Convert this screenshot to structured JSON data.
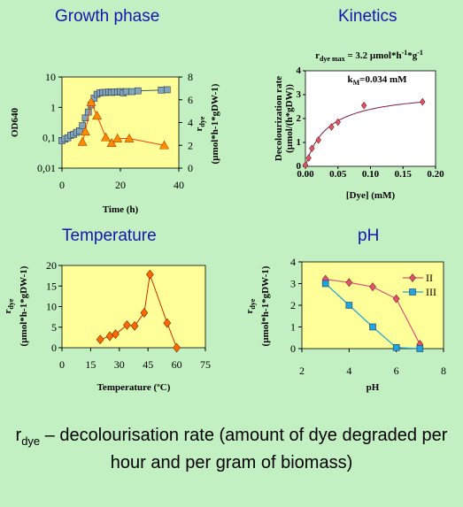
{
  "chart_data": [
    {
      "id": "growth",
      "type": "line",
      "title": "Growth phase",
      "xlabel": "Time (h)",
      "ylabel_left": "OD640",
      "ylabel_right_main": "r",
      "ylabel_right_sub": "dye",
      "ylabel_right_unit": "(µmol*h-1*gDW-1)",
      "xlim": [
        0,
        40
      ],
      "xticks": [
        "0",
        "20",
        "40"
      ],
      "ylim_left": [
        0.01,
        10
      ],
      "yscale_left": "log",
      "yticks_left": [
        "0,01",
        "0,1",
        "1",
        "10"
      ],
      "ylim_right": [
        0,
        8
      ],
      "yticks_right": [
        "0",
        "2",
        "4",
        "6",
        "8"
      ],
      "series": [
        {
          "axis": "left",
          "marker": "square",
          "color": "#7fa7b8",
          "x": [
            0,
            1,
            2,
            3,
            4,
            5,
            6,
            7,
            8,
            9,
            10,
            11,
            12,
            13,
            14,
            15,
            16,
            17,
            18,
            19,
            20,
            21,
            22,
            24,
            26,
            34,
            36
          ],
          "y": [
            0.08,
            0.09,
            0.1,
            0.12,
            0.13,
            0.15,
            0.17,
            0.25,
            0.45,
            0.7,
            1.2,
            2.0,
            2.7,
            3.0,
            3.1,
            3.1,
            3.2,
            3.1,
            3.2,
            3.2,
            3.3,
            3.0,
            3.3,
            3.3,
            3.5,
            3.7,
            3.8
          ]
        },
        {
          "axis": "right",
          "marker": "triangle",
          "color": "#ff8c00",
          "x": [
            7,
            8,
            10,
            12,
            15,
            17,
            19,
            23,
            35
          ],
          "y": [
            2.3,
            3.2,
            5.8,
            4.6,
            2.7,
            2.2,
            2.6,
            2.6,
            2.0
          ]
        }
      ]
    },
    {
      "id": "kinetics",
      "type": "scatter",
      "title": "Kinetics",
      "annotation_line1_prefix": "r",
      "annotation_line1_sub": "dye max",
      "annotation_line1_value": " = 3.2 µmol*h",
      "annotation_line1_sup1": "-1",
      "annotation_line1_mid": "*g",
      "annotation_line1_sup2": "-1",
      "annotation_line2_prefix": "k",
      "annotation_line2_sub": "M",
      "annotation_line2_value": "=0.034 mM",
      "xlabel": "[Dye] (mM)",
      "ylabel_line1": "Decolourization rate",
      "ylabel_line2": "(µmol/(h*gDW))",
      "xlim": [
        0,
        0.2
      ],
      "xticks": [
        "0.00",
        "0.05",
        "0.10",
        "0.15",
        "0.20"
      ],
      "ylim": [
        0,
        4
      ],
      "yticks": [
        "0",
        "1",
        "2",
        "3",
        "4"
      ],
      "points": {
        "marker": "diamond",
        "color": "#e0507a",
        "x": [
          0.0,
          0.005,
          0.01,
          0.02,
          0.04,
          0.05,
          0.09,
          0.18
        ],
        "y": [
          0.05,
          0.35,
          0.75,
          1.1,
          1.65,
          1.85,
          2.55,
          2.7
        ]
      },
      "fit": {
        "vmax": 3.2,
        "km": 0.034,
        "color": "#7a1f3a"
      }
    },
    {
      "id": "temperature",
      "type": "line",
      "title": "Temperature",
      "xlabel": "Temperature (ºC)",
      "ylabel_main": "r",
      "ylabel_sub": "dye",
      "ylabel_unit": "(µmol*h-1*gDW-1)",
      "xlim": [
        0,
        75
      ],
      "xticks": [
        "0",
        "15",
        "30",
        "45",
        "60",
        "75"
      ],
      "ylim": [
        0,
        20
      ],
      "yticks": [
        "0",
        "5",
        "10",
        "15",
        "20"
      ],
      "series": [
        {
          "marker": "diamond",
          "color": "#ff6a00",
          "x": [
            20,
            25,
            28,
            34,
            38,
            43,
            46,
            55,
            60
          ],
          "y": [
            2.0,
            2.8,
            3.3,
            5.5,
            5.3,
            8.5,
            17.8,
            6.0,
            0.0
          ]
        }
      ]
    },
    {
      "id": "ph",
      "type": "line",
      "title": "pH",
      "xlabel": "pH",
      "ylabel_main": "r",
      "ylabel_sub": "dye",
      "ylabel_unit": "(µmol*h-1*gDW-1)",
      "xlim": [
        2,
        8
      ],
      "xticks": [
        "2",
        "4",
        "6",
        "8"
      ],
      "ylim": [
        0,
        4
      ],
      "yticks": [
        "0",
        "1",
        "2",
        "3",
        "4"
      ],
      "legend": "top-right",
      "series": [
        {
          "name": "II",
          "marker": "diamond",
          "color": "#e0507a",
          "x": [
            3,
            4,
            5,
            6,
            7
          ],
          "y": [
            3.2,
            3.05,
            2.85,
            2.3,
            0.2
          ]
        },
        {
          "name": "III",
          "marker": "square",
          "color": "#1ba7e0",
          "x": [
            3,
            4,
            5,
            6,
            7
          ],
          "y": [
            3.0,
            2.0,
            1.0,
            0.05,
            0.0
          ]
        }
      ]
    }
  ],
  "caption": {
    "r": "r",
    "sub": "dye",
    "text": " – decolourisation rate (amount of dye degraded per hour and per gram of biomass)"
  },
  "colors": {
    "background": "#c2f0c2",
    "plot_area": "#ffff99",
    "plot_area_white": "#ffffff",
    "title": "#1515b0"
  }
}
